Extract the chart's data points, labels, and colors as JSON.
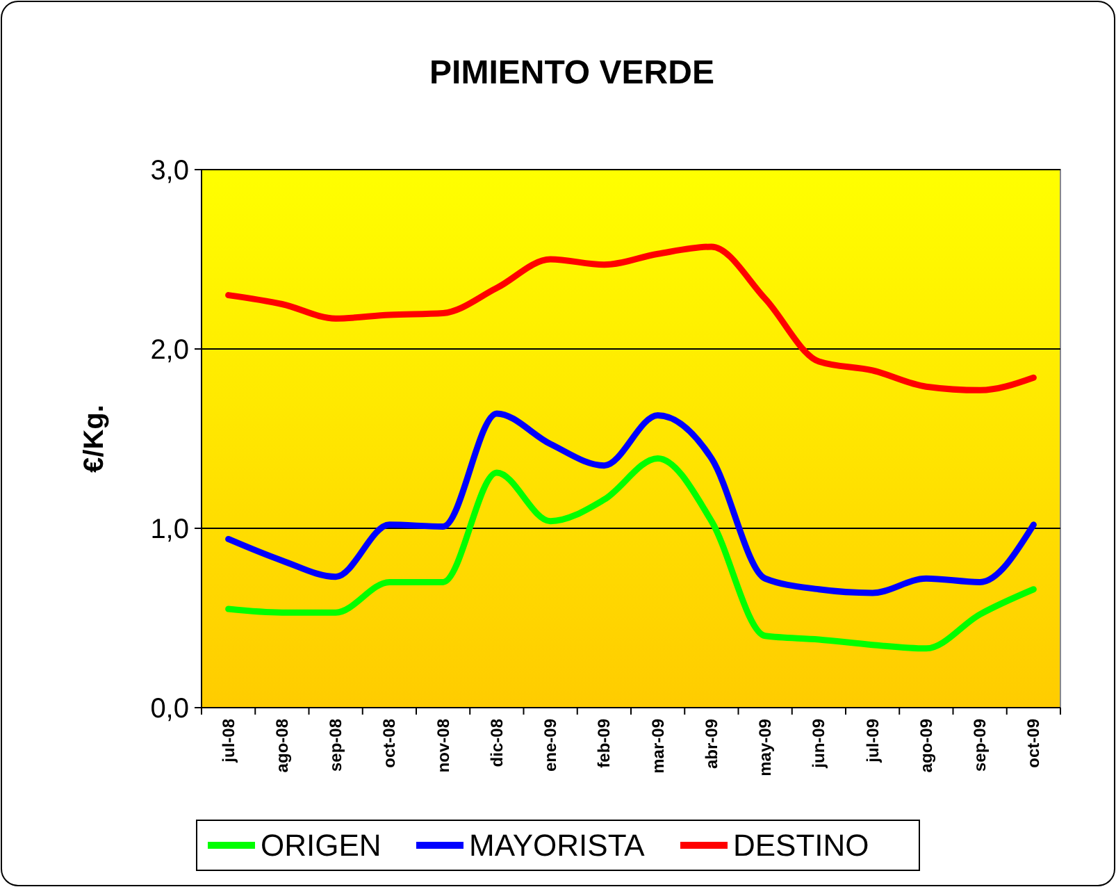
{
  "chart_data": {
    "type": "line",
    "title": "PIMIENTO VERDE",
    "ylabel": "€/Kg.",
    "categories": [
      "jul-08",
      "ago-08",
      "sep-08",
      "oct-08",
      "nov-08",
      "dic-08",
      "ene-09",
      "feb-09",
      "mar-09",
      "abr-09",
      "may-09",
      "jun-09",
      "jul-09",
      "ago-09",
      "sep-09",
      "oct-09"
    ],
    "series": [
      {
        "name": "ORIGEN",
        "color": "#00ff00",
        "values": [
          0.55,
          0.53,
          0.53,
          0.7,
          0.7,
          1.31,
          1.04,
          1.16,
          1.39,
          1.04,
          0.4,
          0.38,
          0.35,
          0.33,
          0.52,
          0.66
        ]
      },
      {
        "name": "MAYORISTA",
        "color": "#0000ff",
        "values": [
          0.94,
          0.82,
          0.73,
          1.02,
          1.01,
          1.64,
          1.47,
          1.35,
          1.63,
          1.39,
          0.72,
          0.66,
          0.64,
          0.72,
          0.7,
          1.02
        ]
      },
      {
        "name": "DESTINO",
        "color": "#ff0000",
        "values": [
          2.3,
          2.25,
          2.17,
          2.19,
          2.2,
          2.34,
          2.5,
          2.47,
          2.53,
          2.57,
          2.28,
          1.93,
          1.88,
          1.79,
          1.77,
          1.84
        ]
      }
    ],
    "ylim": [
      0,
      3
    ],
    "yticks": [
      {
        "value": 0,
        "label": "0,0"
      },
      {
        "value": 1,
        "label": "1,0"
      },
      {
        "value": 2,
        "label": "2,0"
      },
      {
        "value": 3,
        "label": "3,0"
      }
    ],
    "grid": "y",
    "legend": "bottom",
    "marker": "none",
    "line_style": "solid"
  }
}
